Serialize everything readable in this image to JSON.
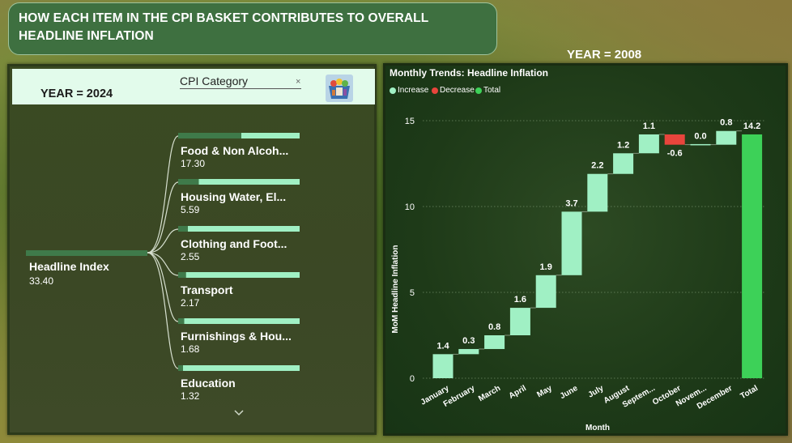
{
  "title": "HOW EACH ITEM IN THE CPI BASKET CONTRIBUTES TO OVERALL HEADLINE INFLATION",
  "left_panel": {
    "year_text": "YEAR  = 2024",
    "filter_label": "CPI Category",
    "filter_clear": "×",
    "root": {
      "label": "Headline Index",
      "value": "33.40"
    },
    "children": [
      {
        "label": "Food & Non Alcoh...",
        "value": "17.30",
        "share": 0.52
      },
      {
        "label": "Housing Water, El...",
        "value": "5.59",
        "share": 0.17
      },
      {
        "label": "Clothing and Foot...",
        "value": "2.55",
        "share": 0.08
      },
      {
        "label": "Transport",
        "value": "2.17",
        "share": 0.065
      },
      {
        "label": "Furnishings & Hou...",
        "value": "1.68",
        "share": 0.05
      },
      {
        "label": "Education",
        "value": "1.32",
        "share": 0.04
      }
    ]
  },
  "right_panel": {
    "year_text": "YEAR  = 2008",
    "chart_title": "Monthly Trends: Headline Inflation",
    "legend": [
      {
        "label": "Increase",
        "color": "#a0f0c4"
      },
      {
        "label": "Decrease",
        "color": "#e8453c"
      },
      {
        "label": "Total",
        "color": "#3dd158"
      }
    ]
  },
  "chart_data": {
    "type": "waterfall",
    "title": "Monthly Trends: Headline Inflation",
    "xlabel": "Month",
    "ylabel": "MoM Headline Inflation",
    "ylim": [
      0,
      15
    ],
    "yticks": [
      0,
      5,
      10,
      15
    ],
    "grid": true,
    "legend_position": "top-left",
    "categories": [
      "January",
      "February",
      "March",
      "April",
      "May",
      "June",
      "July",
      "August",
      "Septem...",
      "October",
      "Novem...",
      "December",
      "Total"
    ],
    "values": [
      1.4,
      0.3,
      0.8,
      1.6,
      1.9,
      3.7,
      2.2,
      1.2,
      1.1,
      -0.6,
      0.0,
      0.8,
      14.2
    ],
    "labels": [
      "1.4",
      "0.3",
      "0.8",
      "1.6",
      "1.9",
      "3.7",
      "2.2",
      "1.2",
      "1.1",
      "-0.6",
      "0.0",
      "0.8",
      "14.2"
    ],
    "colors": {
      "increase": "#a0f0c4",
      "decrease": "#e8453c",
      "total": "#3dd158"
    }
  }
}
